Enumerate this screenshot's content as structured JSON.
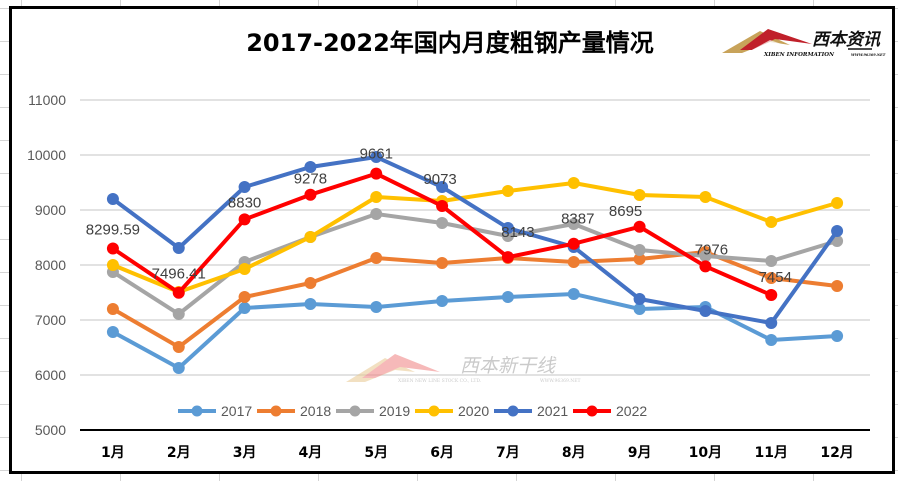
{
  "chart_data": {
    "type": "line",
    "title": "2017-2022年国内月度粗钢产量情况",
    "xlabel": "",
    "ylabel": "",
    "categories": [
      "1月",
      "2月",
      "3月",
      "4月",
      "5月",
      "6月",
      "7月",
      "8月",
      "9月",
      "10月",
      "11月",
      "12月"
    ],
    "ylim": [
      5000,
      11000
    ],
    "yticks": [
      5000,
      6000,
      7000,
      8000,
      9000,
      10000,
      11000
    ],
    "ytick_labels": [
      "5000",
      "6000",
      "7000",
      "8000",
      "9000",
      "10000",
      "11000"
    ],
    "grid": true,
    "legend_position": "bottom",
    "series": [
      {
        "name": "2017",
        "color": "#5B9BD5",
        "values": [
          6782,
          6127,
          7218,
          7291,
          7236,
          7345,
          7418,
          7473,
          7200,
          7236,
          6636,
          6709
        ]
      },
      {
        "name": "2018",
        "color": "#ED7D31",
        "values": [
          7200,
          6509,
          7418,
          7673,
          8127,
          8036,
          8127,
          8055,
          8109,
          8236,
          7764,
          7618
        ]
      },
      {
        "name": "2019",
        "color": "#A5A5A5",
        "values": [
          7873,
          7109,
          8055,
          8509,
          8927,
          8764,
          8527,
          8745,
          8273,
          8164,
          8073,
          8436
        ]
      },
      {
        "name": "2020",
        "color": "#FFC000",
        "values": [
          8000,
          7509,
          7927,
          8509,
          9236,
          9164,
          9345,
          9491,
          9273,
          9236,
          8782,
          9127
        ]
      },
      {
        "name": "2021",
        "color": "#4472C4",
        "values": [
          9200,
          8309,
          9418,
          9782,
          9964,
          9418,
          8673,
          8327,
          7382,
          7164,
          6945,
          8618
        ]
      },
      {
        "name": "2022",
        "color": "#FF0000",
        "values": [
          8299.59,
          7496.41,
          8830,
          9278,
          9661,
          9073,
          8143,
          8387,
          8695,
          7976,
          7454,
          null
        ],
        "data_labels": [
          "8299.59",
          "7496.41",
          "8830",
          "9278",
          "9661",
          "9073",
          "8143",
          "8387",
          "8695",
          "7976",
          "7454"
        ]
      }
    ]
  },
  "logo": {
    "name_cn": "西本资讯",
    "name_en": "XIBEN INFORMATION",
    "suffix": "WWW.96369.NET"
  },
  "watermark": {
    "name_cn": "西本新干线",
    "name_en": "XIBEN NEW LINE STOCK CO., LTD.",
    "suffix": "WWW.96369.NET"
  }
}
